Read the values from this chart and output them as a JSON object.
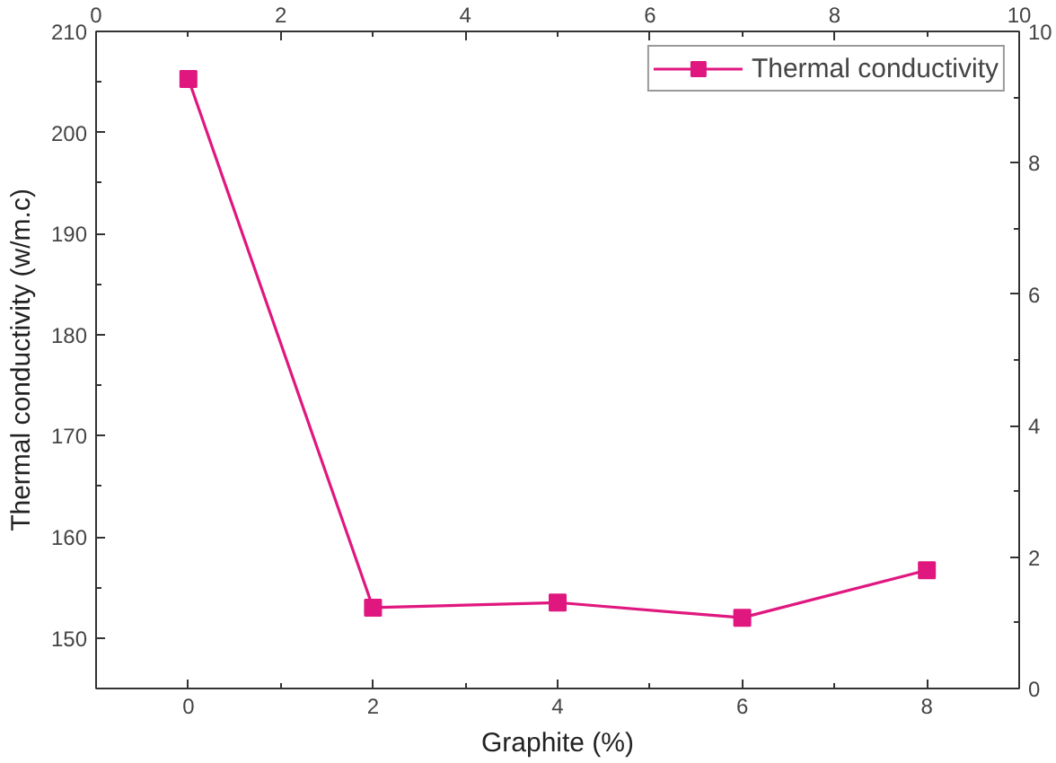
{
  "chart_data": {
    "type": "line",
    "xlabel": "Graphite (%)",
    "ylabel": "Thermal conductivity (w/m.c)",
    "x": [
      0,
      2,
      4,
      6,
      8
    ],
    "series": [
      {
        "name": "Thermal conductivity",
        "color": "#e0177f",
        "values": [
          205.3,
          153.0,
          153.5,
          152.0,
          156.7
        ],
        "marker": "square",
        "line_style": "solid"
      }
    ],
    "xlim": [
      -1,
      9
    ],
    "xticks": [
      0,
      2,
      4,
      6,
      8
    ],
    "ylim": [
      145,
      210
    ],
    "yticks": [
      150,
      160,
      170,
      180,
      190,
      200,
      210
    ],
    "x2lim": [
      0,
      10
    ],
    "x2ticks": [
      0,
      2,
      4,
      6,
      8,
      10
    ],
    "y2lim": [
      0,
      10
    ],
    "y2ticks": [
      0,
      2,
      4,
      6,
      8,
      10
    ],
    "grid": false,
    "legend": "top right"
  }
}
